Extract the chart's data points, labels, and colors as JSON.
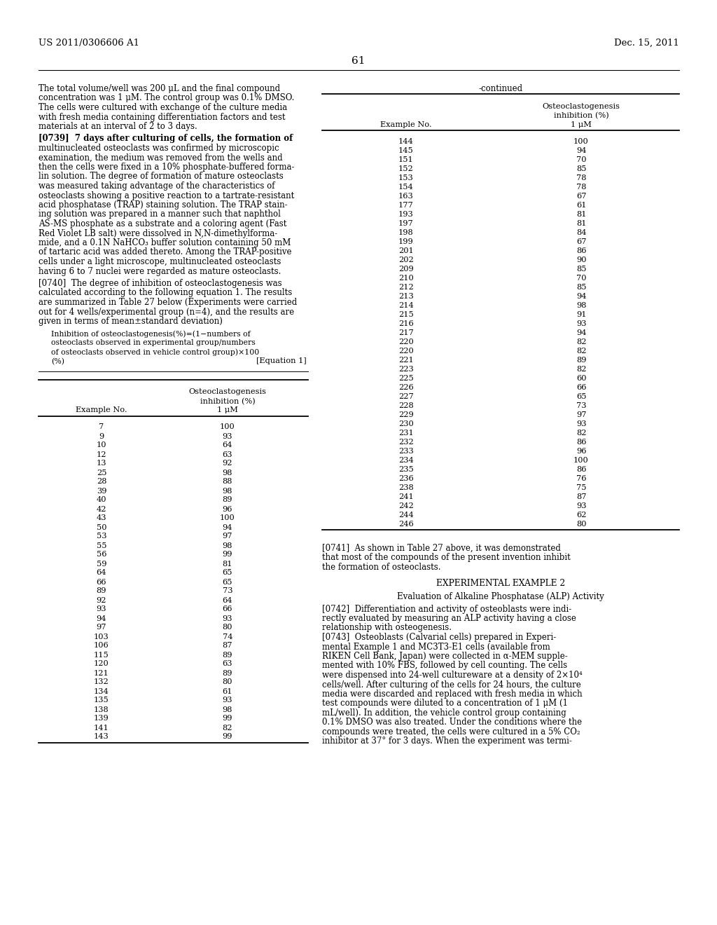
{
  "page_number": "61",
  "patent_left": "US 2011/0306606 A1",
  "patent_right": "Dec. 15, 2011",
  "left_text_blocks": [
    "The total volume/well was 200 μL and the final compound\nconcentration was 1 μM. The control group was 0.1% DMSO.\nThe cells were cultured with exchange of the culture media\nwith fresh media containing differentiation factors and test\nmaterials at an interval of 2 to 3 days.",
    "[0739]  7 days after culturing of cells, the formation of\nmultinucleated osteoclasts was confirmed by microscopic\nexamination, the medium was removed from the wells and\nthen the cells were fixed in a 10% phosphate-buffered forma-\nlin solution. The degree of formation of mature osteoclasts\nwas measured taking advantage of the characteristics of\nosteoclasts showing a positive reaction to a tartrate-resistant\nacid phosphatase (TRAP) staining solution. The TRAP stain-\ning solution was prepared in a manner such that naphthol\nAS-MS phosphate as a substrate and a coloring agent (Fast\nRed Violet LB salt) were dissolved in N,N-dimethylforma-\nmide, and a 0.1N NaHCO₃ buffer solution containing 50 mM\nof tartaric acid was added thereto. Among the TRAP-positive\ncells under a light microscope, multinucleated osteoclasts\nhaving 6 to 7 nuclei were regarded as mature osteoclasts.",
    "[0740]  The degree of inhibition of osteoclastogenesis was\ncalculated according to the following equation 1. The results\nare summarized in Table 27 below (Experiments were carried\nout for 4 wells/experimental group (n=4), and the results are\ngiven in terms of mean±standard deviation)"
  ],
  "equation_lines": [
    "Inhibition of osteoclastogenesis(%)=(1−numbers of",
    "osteoclasts observed in experimental group/numbers",
    "of osteoclasts observed in vehicle control group)×100",
    "(%)"
  ],
  "equation_label": "[Equation 1]",
  "left_table_header_col1": "Example No.",
  "left_table_header_col2_line1": "Osteoclastogenesis",
  "left_table_header_col2_line2": "inhibition (%)",
  "left_table_header_col2_line3": "1 μM",
  "left_table_data": [
    [
      "7",
      "100"
    ],
    [
      "9",
      "93"
    ],
    [
      "10",
      "64"
    ],
    [
      "12",
      "63"
    ],
    [
      "13",
      "92"
    ],
    [
      "25",
      "98"
    ],
    [
      "28",
      "88"
    ],
    [
      "39",
      "98"
    ],
    [
      "40",
      "89"
    ],
    [
      "42",
      "96"
    ],
    [
      "43",
      "100"
    ],
    [
      "50",
      "94"
    ],
    [
      "53",
      "97"
    ],
    [
      "55",
      "98"
    ],
    [
      "56",
      "99"
    ],
    [
      "59",
      "81"
    ],
    [
      "64",
      "65"
    ],
    [
      "66",
      "65"
    ],
    [
      "89",
      "73"
    ],
    [
      "92",
      "64"
    ],
    [
      "93",
      "66"
    ],
    [
      "94",
      "93"
    ],
    [
      "97",
      "80"
    ],
    [
      "103",
      "74"
    ],
    [
      "106",
      "87"
    ],
    [
      "115",
      "89"
    ],
    [
      "120",
      "63"
    ],
    [
      "121",
      "89"
    ],
    [
      "132",
      "80"
    ],
    [
      "134",
      "61"
    ],
    [
      "135",
      "93"
    ],
    [
      "138",
      "98"
    ],
    [
      "139",
      "99"
    ],
    [
      "141",
      "82"
    ],
    [
      "143",
      "99"
    ]
  ],
  "right_table_continued": "-continued",
  "right_table_header_col1": "Example No.",
  "right_table_header_col2_line1": "Osteoclastogenesis",
  "right_table_header_col2_line2": "inhibition (%)",
  "right_table_header_col2_line3": "1 μM",
  "right_table_data": [
    [
      "144",
      "100"
    ],
    [
      "145",
      "94"
    ],
    [
      "151",
      "70"
    ],
    [
      "152",
      "85"
    ],
    [
      "153",
      "78"
    ],
    [
      "154",
      "78"
    ],
    [
      "163",
      "67"
    ],
    [
      "177",
      "61"
    ],
    [
      "193",
      "81"
    ],
    [
      "197",
      "81"
    ],
    [
      "198",
      "84"
    ],
    [
      "199",
      "67"
    ],
    [
      "201",
      "86"
    ],
    [
      "202",
      "90"
    ],
    [
      "209",
      "85"
    ],
    [
      "210",
      "70"
    ],
    [
      "212",
      "85"
    ],
    [
      "213",
      "94"
    ],
    [
      "214",
      "98"
    ],
    [
      "215",
      "91"
    ],
    [
      "216",
      "93"
    ],
    [
      "217",
      "94"
    ],
    [
      "220",
      "82"
    ],
    [
      "220",
      "82"
    ],
    [
      "221",
      "89"
    ],
    [
      "223",
      "82"
    ],
    [
      "225",
      "60"
    ],
    [
      "226",
      "66"
    ],
    [
      "227",
      "65"
    ],
    [
      "228",
      "73"
    ],
    [
      "229",
      "97"
    ],
    [
      "230",
      "93"
    ],
    [
      "231",
      "82"
    ],
    [
      "232",
      "86"
    ],
    [
      "233",
      "96"
    ],
    [
      "234",
      "100"
    ],
    [
      "235",
      "86"
    ],
    [
      "236",
      "76"
    ],
    [
      "238",
      "75"
    ],
    [
      "241",
      "87"
    ],
    [
      "242",
      "93"
    ],
    [
      "244",
      "62"
    ],
    [
      "246",
      "80"
    ]
  ],
  "para_0741": "[0741]  As shown in Table 27 above, it was demonstrated\nthat most of the compounds of the present invention inhibit\nthe formation of osteoclasts.",
  "para_exp2": "EXPERIMENTAL EXAMPLE 2",
  "para_eval": "Evaluation of Alkaline Phosphatase (ALP) Activity",
  "para_0742": "[0742]  Differentiation and activity of osteoblasts were indi-\nrectly evaluated by measuring an ALP activity having a close\nrelationship with osteogenesis.",
  "para_0743": "[0743]  Osteoblasts (Calvarial cells) prepared in Experi-\nmental Example 1 and MC3T3-E1 cells (available from\nRIKEN Cell Bank, Japan) were collected in α-MEM supple-\nmented with 10% FBS, followed by cell counting. The cells\nwere dispensed into 24-well cultureware at a density of 2×10⁴\ncells/well. After culturing of the cells for 24 hours, the culture\nmedia were discarded and replaced with fresh media in which\ntest compounds were diluted to a concentration of 1 μM (1\nmL/well). In addition, the vehicle control group containing\n0.1% DMSO was also treated. Under the conditions where the\ncompounds were treated, the cells were cultured in a 5% CO₂\ninhibitor at 37° for 3 days. When the experiment was termi-"
}
